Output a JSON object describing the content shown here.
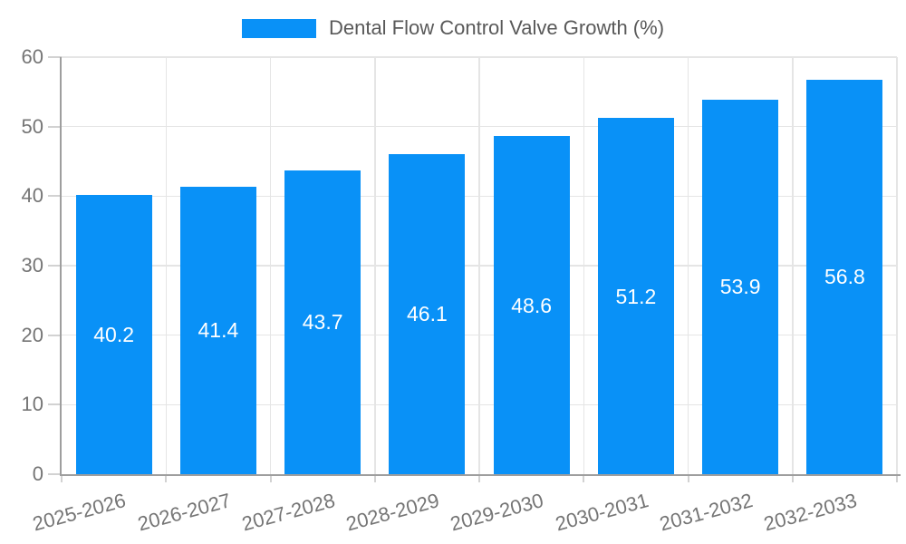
{
  "legend": {
    "label": "Dental Flow Control Valve Growth (%)"
  },
  "chart_data": {
    "type": "bar",
    "title": "Dental Flow Control Valve Growth (%)",
    "series_name": "Dental Flow Control Valve Growth (%)",
    "categories": [
      "2025-2026",
      "2026-2027",
      "2027-2028",
      "2028-2029",
      "2029-2030",
      "2030-2031",
      "2031-2032",
      "2032-2033"
    ],
    "values": [
      40.2,
      41.4,
      43.7,
      46.1,
      48.6,
      51.2,
      53.9,
      56.8
    ],
    "value_labels_shown": true,
    "xlabel": "",
    "ylabel": "",
    "ylim": [
      0,
      60
    ],
    "yticks": [
      0,
      10,
      20,
      30,
      40,
      50,
      60
    ],
    "grid": true,
    "legend_position": "top",
    "x_tick_rotation_deg": -15,
    "bar_color": "#0991f7",
    "value_label_color": "#ffffff"
  },
  "style": {
    "background_color": "#ffffff",
    "axis_color": "#9e9e9e",
    "grid_color": "#e5e5e5",
    "tick_mark_color": "#d2d2d2",
    "tick_label_color": "#757575",
    "title_color": "#595959"
  }
}
